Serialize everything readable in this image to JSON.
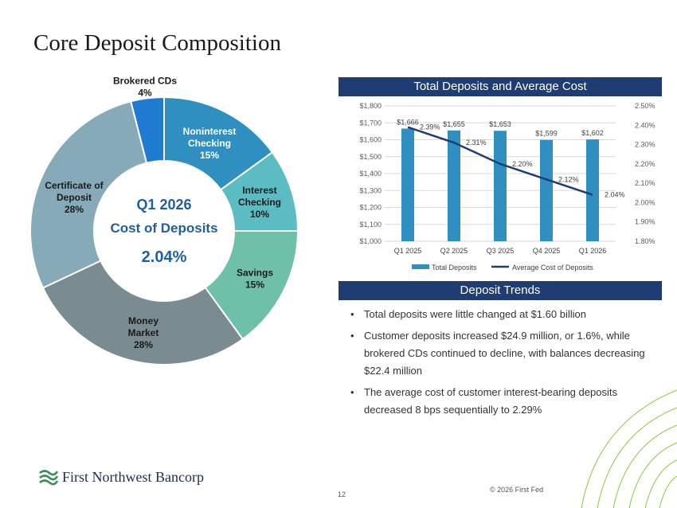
{
  "slide": {
    "title": "Core Deposit Composition",
    "page_number": "12",
    "copyright": "© 2026 First Fed",
    "logo_text": "First Northwest Bancorp"
  },
  "donut": {
    "center_line1": "Q1 2026",
    "center_line2": "Cost of Deposits",
    "center_value": "2.04%",
    "slices": [
      {
        "label_lines": [
          "Noninterest",
          "Checking",
          "15%"
        ],
        "value": 15,
        "color": "#2e8fc0",
        "label_color": "#ffffff"
      },
      {
        "label_lines": [
          "Interest",
          "Checking",
          "10%"
        ],
        "value": 10,
        "color": "#5bbcc4",
        "label_color": "#1a1a1a"
      },
      {
        "label_lines": [
          "Savings",
          "15%"
        ],
        "value": 15,
        "color": "#6fc0a8",
        "label_color": "#1a1a1a"
      },
      {
        "label_lines": [
          "Money",
          "Market",
          "28%"
        ],
        "value": 28,
        "color": "#7a8c91",
        "label_color": "#1a1a1a"
      },
      {
        "label_lines": [
          "Certificate of",
          "Deposit",
          "28%"
        ],
        "value": 28,
        "color": "#86aab8",
        "label_color": "#1a1a1a"
      },
      {
        "label_lines": [
          "Brokered CDs",
          "4%"
        ],
        "value": 4,
        "color": "#1f7bd0",
        "label_color": "#1a1a1a"
      }
    ]
  },
  "panels": {
    "chart_header": "Total Deposits and Average Cost",
    "trends_header": "Deposit Trends"
  },
  "bullets": [
    "Total deposits were little changed at $1.60 billion",
    "Customer deposits increased $24.9 million, or 1.6%, while brokered CDs continued to decline, with balances decreasing $22.4 million",
    "The average cost of customer interest-bearing deposits decreased 8 bps sequentially to 2.29%"
  ],
  "chart_data": [
    {
      "type": "pie",
      "categories": [
        "Noninterest Checking",
        "Interest Checking",
        "Savings",
        "Money Market",
        "Certificate of Deposit",
        "Brokered CDs"
      ],
      "values": [
        15,
        10,
        15,
        28,
        28,
        4
      ],
      "unit": "%"
    },
    {
      "type": "bar",
      "title": "Total Deposits and Average Cost",
      "categories": [
        "Q1 2025",
        "Q2 2025",
        "Q3 2025",
        "Q4 2025",
        "Q1 2026"
      ],
      "series": [
        {
          "name": "Total Deposits",
          "type": "bar",
          "axis": "left",
          "values": [
            1666,
            1655,
            1653,
            1599,
            1602
          ],
          "labels": [
            "$1,666",
            "$1,655",
            "$1,653",
            "$1,599",
            "$1,602"
          ],
          "color": "#2e8fc0"
        },
        {
          "name": "Average Cost of Deposits",
          "type": "line",
          "axis": "right",
          "values": [
            2.39,
            2.31,
            2.2,
            2.12,
            2.04
          ],
          "labels": [
            "2.39%",
            "2.31%",
            "2.20%",
            "2.12%",
            "2.04%"
          ],
          "color": "#1f3d72"
        }
      ],
      "ylim_left": [
        1000,
        1800
      ],
      "yticks_left": [
        "$1,000",
        "$1,100",
        "$1,200",
        "$1,300",
        "$1,400",
        "$1,500",
        "$1,600",
        "$1,700",
        "$1,800"
      ],
      "ylim_right": [
        1.8,
        2.5
      ],
      "yticks_right": [
        "1.80%",
        "1.90%",
        "2.00%",
        "2.10%",
        "2.20%",
        "2.30%",
        "2.40%",
        "2.50%"
      ],
      "grid": true,
      "legend": "bottom"
    }
  ]
}
